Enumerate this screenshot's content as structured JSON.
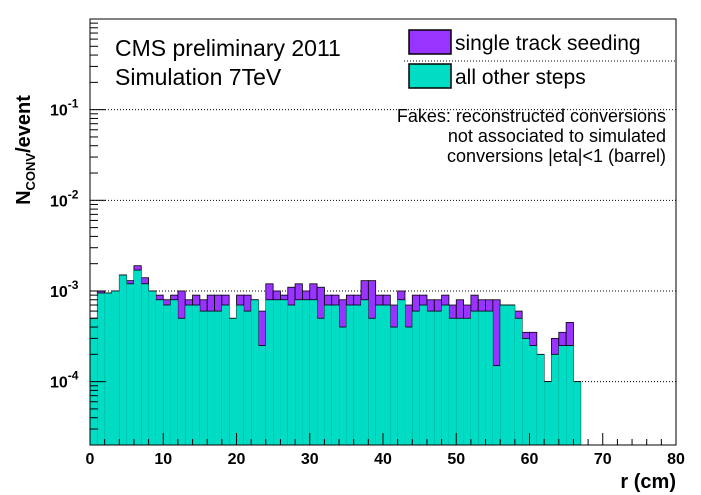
{
  "chart_data": {
    "type": "histogram",
    "stacked": true,
    "log_y": true,
    "xlabel": "r (cm)",
    "ylabel_main": "N",
    "ylabel_sub": "CONV",
    "ylabel_tail": "/event",
    "xlim": [
      0,
      80
    ],
    "ylim": [
      2e-05,
      1
    ],
    "x_ticks": [
      "0",
      "10",
      "20",
      "30",
      "40",
      "50",
      "60",
      "70",
      "80"
    ],
    "y_ticks": [
      {
        "base": "10",
        "exp": "-4",
        "value": 0.0001
      },
      {
        "base": "10",
        "exp": "-3",
        "value": 0.001
      },
      {
        "base": "10",
        "exp": "-2",
        "value": 0.01
      },
      {
        "base": "10",
        "exp": "-1",
        "value": 0.1
      }
    ],
    "grid_y": true,
    "bin_width": 1,
    "bin_low_edges": [
      0,
      1,
      2,
      3,
      4,
      5,
      6,
      7,
      8,
      9,
      10,
      11,
      12,
      13,
      14,
      15,
      16,
      17,
      18,
      19,
      20,
      21,
      22,
      23,
      24,
      25,
      26,
      27,
      28,
      29,
      30,
      31,
      32,
      33,
      34,
      35,
      36,
      37,
      38,
      39,
      40,
      41,
      42,
      43,
      44,
      45,
      46,
      47,
      48,
      49,
      50,
      51,
      52,
      53,
      54,
      55,
      56,
      57,
      58,
      59,
      60,
      61,
      62,
      63,
      64,
      65,
      66
    ],
    "series": [
      {
        "name": "all other steps",
        "color": "#00DDC4",
        "values": [
          0.0005,
          0.00095,
          0.00095,
          0.001,
          0.0015,
          0.0012,
          0.0017,
          0.0012,
          0.001,
          0.0008,
          0.0007,
          0.0008,
          0.0005,
          0.0007,
          0.0007,
          0.0006,
          0.0006,
          0.0006,
          0.0007,
          0.0005,
          0.0007,
          0.0006,
          0.0008,
          0.00025,
          0.0008,
          0.0008,
          0.0008,
          0.0007,
          0.0008,
          0.0008,
          0.0008,
          0.0005,
          0.0007,
          0.0007,
          0.0004,
          0.0007,
          0.0007,
          0.0008,
          0.0005,
          0.0007,
          0.0007,
          0.0004,
          0.0008,
          0.0004,
          0.0006,
          0.0007,
          0.0006,
          0.0006,
          0.0007,
          0.0005,
          0.0005,
          0.0005,
          0.0006,
          0.0006,
          0.0006,
          0.00015,
          0.0007,
          0.0007,
          0.0005,
          0.0003,
          0.00025,
          0.0002,
          0.0001,
          0.0002,
          0.00025,
          0.00025,
          0.0001
        ],
        "total_values": [
          0.0005,
          0.001,
          0.00095,
          0.001,
          0.0015,
          0.0013,
          0.0019,
          0.0014,
          0.001,
          0.0009,
          0.0008,
          0.0009,
          0.001,
          0.0008,
          0.0009,
          0.0008,
          0.0009,
          0.0009,
          0.0009,
          0.0005,
          0.0009,
          0.0009,
          0.0008,
          0.0006,
          0.0012,
          0.001,
          0.0009,
          0.0011,
          0.0012,
          0.001,
          0.0012,
          0.0011,
          0.0009,
          0.0009,
          0.0008,
          0.0009,
          0.0009,
          0.0013,
          0.0013,
          0.0009,
          0.0009,
          0.0007,
          0.001,
          0.0007,
          0.0009,
          0.0009,
          0.0008,
          0.0008,
          0.0009,
          0.0007,
          0.0008,
          0.0007,
          0.0009,
          0.0008,
          0.0008,
          0.0008,
          0.0007,
          0.0007,
          0.0006,
          0.00035,
          0.00035,
          0.0002,
          0.0001,
          0.0003,
          0.00035,
          0.00045,
          0.0001
        ]
      },
      {
        "name": "single track seeding",
        "color": "#9933FF",
        "values": [
          0,
          5e-05,
          0,
          0,
          0,
          0.0001,
          0.0002,
          0.0002,
          0,
          0.0001,
          0.0001,
          0.0001,
          0.0005,
          0.0001,
          0.0002,
          0.0002,
          0.0003,
          0.0003,
          0.0002,
          0,
          0.0002,
          0.0003,
          0,
          0.00035,
          0.0004,
          0.0002,
          0.0001,
          0.0004,
          0.0004,
          0.0002,
          0.0004,
          0.0006,
          0.0002,
          0.0002,
          0.0004,
          0.0002,
          0.0002,
          0.0005,
          0.0008,
          0.0002,
          0.0002,
          0.0003,
          0.0002,
          0.0003,
          0.0003,
          0.0002,
          0.0002,
          0.0002,
          0.0002,
          0.0002,
          0.0003,
          0.0002,
          0.0003,
          0.0002,
          0.0002,
          0.00065,
          0,
          0,
          0.0001,
          5e-05,
          0.0001,
          0,
          0,
          0.0001,
          0.0001,
          0.0002,
          0
        ]
      }
    ],
    "legend": {
      "placement": "top-right",
      "entries": [
        {
          "label": "single track seeding",
          "color": "#9933FF"
        },
        {
          "label": "all other steps",
          "color": "#00DDC4"
        }
      ]
    },
    "annotations": {
      "title_line1": "CMS preliminary 2011",
      "title_line2": "Simulation 7TeV",
      "note_line1": "Fakes: reconstructed conversions",
      "note_line2": "not associated to simulated",
      "note_line3": "conversions |eta|<1 (barrel)"
    }
  }
}
